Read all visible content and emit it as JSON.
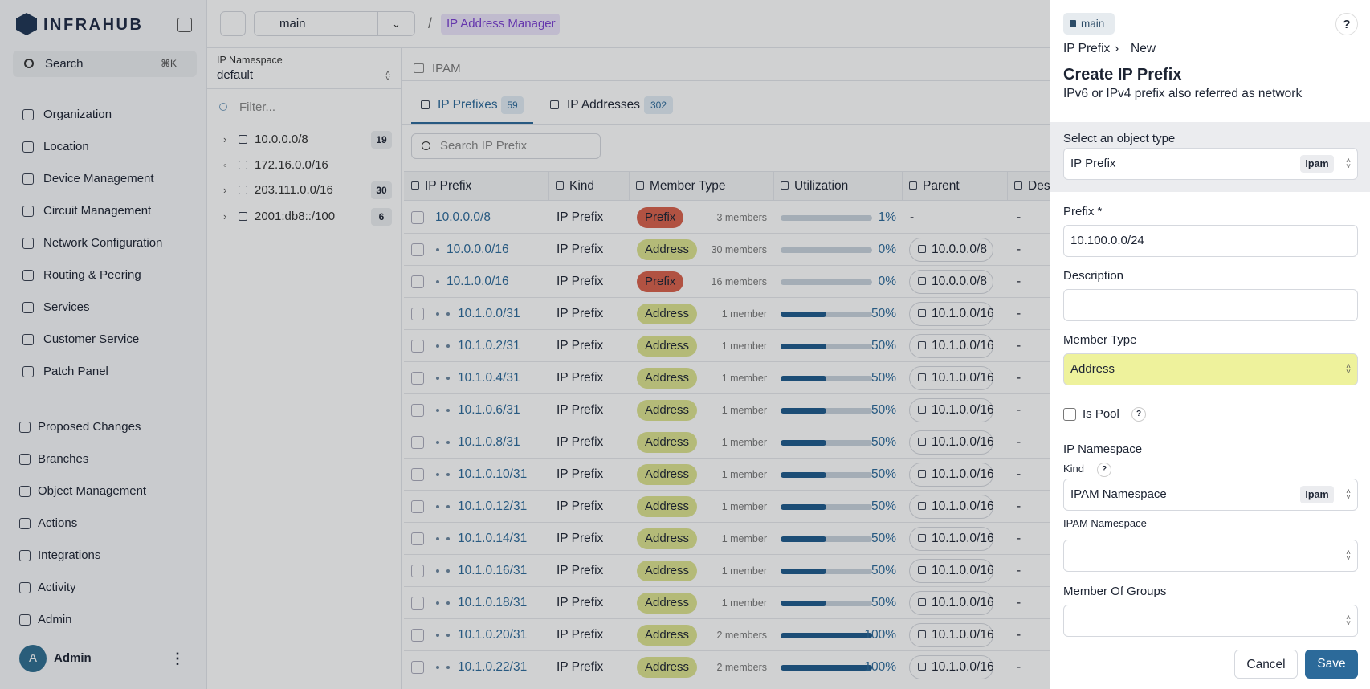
{
  "sidebar": {
    "brand": "INFRAHUB",
    "search": "Search",
    "shortcut": "⌘K",
    "nav": [
      "Organization",
      "Location",
      "Device Management",
      "Circuit Management",
      "Network Configuration",
      "Routing & Peering",
      "Services",
      "Customer Service",
      "Patch Panel"
    ],
    "nav_secondary": [
      "Proposed Changes",
      "Branches",
      "Object Management",
      "Actions",
      "Integrations",
      "Activity",
      "Admin"
    ],
    "user": {
      "initial": "A",
      "name": "Admin"
    }
  },
  "topbar": {
    "branch": "main",
    "separator": "/",
    "breadcrumb": "IP Address Manager"
  },
  "namespace": {
    "label": "IP Namespace",
    "value": "default",
    "filter": "Filter...",
    "tree": [
      {
        "label": "10.0.0.0/8",
        "count": 19
      },
      {
        "label": "172.16.0.0/16"
      },
      {
        "label": "203.111.0.0/16",
        "count": 30
      },
      {
        "label": "2001:db8::/100",
        "count": 6
      }
    ]
  },
  "main": {
    "breadcrumb": "IPAM",
    "tabs": [
      {
        "label": "IP Prefixes",
        "count": 59
      },
      {
        "label": "IP Addresses",
        "count": 302
      }
    ],
    "search": "Search IP Prefix",
    "table": {
      "columns": [
        "IP Prefix",
        "Kind",
        "Member Type",
        "Utilization",
        "Parent",
        "Description"
      ],
      "rows": [
        {
          "prefix": "10.0.0.0/8",
          "depth": 0,
          "kind": "IP Prefix",
          "member_type": "Prefix",
          "members": "3 members",
          "utilization": 1,
          "utilization_label": "1%",
          "parent": "-",
          "description": "-"
        },
        {
          "prefix": "10.0.0.0/16",
          "depth": 1,
          "kind": "IP Prefix",
          "member_type": "Address",
          "members": "30 members",
          "utilization": 0,
          "utilization_label": "0%",
          "parent": "10.0.0.0/8",
          "description": "-"
        },
        {
          "prefix": "10.1.0.0/16",
          "depth": 1,
          "kind": "IP Prefix",
          "member_type": "Prefix",
          "members": "16 members",
          "utilization": 0,
          "utilization_label": "0%",
          "parent": "10.0.0.0/8",
          "description": "-"
        },
        {
          "prefix": "10.1.0.0/31",
          "depth": 2,
          "kind": "IP Prefix",
          "member_type": "Address",
          "members": "1 member",
          "utilization": 50,
          "utilization_label": "50%",
          "parent": "10.1.0.0/16",
          "description": "-"
        },
        {
          "prefix": "10.1.0.2/31",
          "depth": 2,
          "kind": "IP Prefix",
          "member_type": "Address",
          "members": "1 member",
          "utilization": 50,
          "utilization_label": "50%",
          "parent": "10.1.0.0/16",
          "description": "-"
        },
        {
          "prefix": "10.1.0.4/31",
          "depth": 2,
          "kind": "IP Prefix",
          "member_type": "Address",
          "members": "1 member",
          "utilization": 50,
          "utilization_label": "50%",
          "parent": "10.1.0.0/16",
          "description": "-"
        },
        {
          "prefix": "10.1.0.6/31",
          "depth": 2,
          "kind": "IP Prefix",
          "member_type": "Address",
          "members": "1 member",
          "utilization": 50,
          "utilization_label": "50%",
          "parent": "10.1.0.0/16",
          "description": "-"
        },
        {
          "prefix": "10.1.0.8/31",
          "depth": 2,
          "kind": "IP Prefix",
          "member_type": "Address",
          "members": "1 member",
          "utilization": 50,
          "utilization_label": "50%",
          "parent": "10.1.0.0/16",
          "description": "-"
        },
        {
          "prefix": "10.1.0.10/31",
          "depth": 2,
          "kind": "IP Prefix",
          "member_type": "Address",
          "members": "1 member",
          "utilization": 50,
          "utilization_label": "50%",
          "parent": "10.1.0.0/16",
          "description": "-"
        },
        {
          "prefix": "10.1.0.12/31",
          "depth": 2,
          "kind": "IP Prefix",
          "member_type": "Address",
          "members": "1 member",
          "utilization": 50,
          "utilization_label": "50%",
          "parent": "10.1.0.0/16",
          "description": "-"
        },
        {
          "prefix": "10.1.0.14/31",
          "depth": 2,
          "kind": "IP Prefix",
          "member_type": "Address",
          "members": "1 member",
          "utilization": 50,
          "utilization_label": "50%",
          "parent": "10.1.0.0/16",
          "description": "-"
        },
        {
          "prefix": "10.1.0.16/31",
          "depth": 2,
          "kind": "IP Prefix",
          "member_type": "Address",
          "members": "1 member",
          "utilization": 50,
          "utilization_label": "50%",
          "parent": "10.1.0.0/16",
          "description": "-"
        },
        {
          "prefix": "10.1.0.18/31",
          "depth": 2,
          "kind": "IP Prefix",
          "member_type": "Address",
          "members": "1 member",
          "utilization": 50,
          "utilization_label": "50%",
          "parent": "10.1.0.0/16",
          "description": "-"
        },
        {
          "prefix": "10.1.0.20/31",
          "depth": 2,
          "kind": "IP Prefix",
          "member_type": "Address",
          "members": "2 members",
          "utilization": 100,
          "utilization_label": "100%",
          "parent": "10.1.0.0/16",
          "description": "-"
        },
        {
          "prefix": "10.1.0.22/31",
          "depth": 2,
          "kind": "IP Prefix",
          "member_type": "Address",
          "members": "2 members",
          "utilization": 100,
          "utilization_label": "100%",
          "parent": "10.1.0.0/16",
          "description": "-"
        }
      ]
    }
  },
  "panel": {
    "branch": "main",
    "help": "?",
    "crumbs": [
      "IP Prefix",
      "New"
    ],
    "crumb_separator": "›",
    "title": "Create IP Prefix",
    "subtitle": "IPv6 or IPv4 prefix also referred as network",
    "object_type": {
      "label": "Select an object type",
      "value": "IP Prefix",
      "badge": "Ipam"
    },
    "prefix": {
      "label": "Prefix *",
      "value": "10.100.0.0/24"
    },
    "description": {
      "label": "Description"
    },
    "member_type": {
      "label": "Member Type",
      "value": "Address"
    },
    "is_pool": {
      "label": "Is Pool",
      "help": "?"
    },
    "ip_namespace": {
      "label": "IP Namespace",
      "kind_label": "Kind",
      "kind_help": "?",
      "kind_value": "IPAM Namespace",
      "kind_badge": "Ipam",
      "namespace_label": "IPAM Namespace"
    },
    "groups": {
      "label": "Member Of Groups"
    },
    "cancel": "Cancel",
    "save": "Save"
  }
}
